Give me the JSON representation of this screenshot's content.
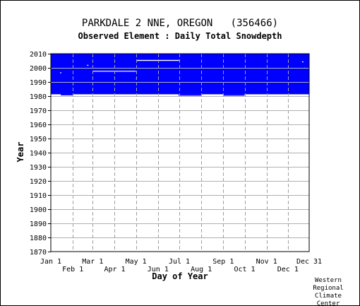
{
  "chart_data": {
    "type": "heatmap",
    "title": "PARKDALE 2 NNE, OREGON   (356466)",
    "subtitle": "Observed Element : Daily Total Snowdepth",
    "xlabel": "Day of Year",
    "ylabel": "Year",
    "x_ticks_upper": [
      "Jan 1",
      "Mar 1",
      "May 1",
      "Jul 1",
      "Sep 1",
      "Nov 1",
      "Dec 31"
    ],
    "x_ticks_lower": [
      "Feb 1",
      "Apr 1",
      "Jun 1",
      "Aug 1",
      "Oct 1",
      "Dec 1"
    ],
    "x_tick_days_upper": [
      1,
      60,
      121,
      182,
      244,
      305,
      365
    ],
    "x_tick_days_lower": [
      32,
      91,
      152,
      213,
      274,
      335
    ],
    "y_ticks": [
      "2010",
      "2000",
      "1990",
      "1980",
      "1970",
      "1960",
      "1950",
      "1940",
      "1930",
      "1920",
      "1910",
      "1900",
      "1890",
      "1880",
      "1870"
    ],
    "xlim": [
      1,
      365
    ],
    "ylim": [
      1870,
      2010
    ],
    "grid": true,
    "data_color": "#0000ff",
    "coverage_block": {
      "day_start": 1,
      "day_end": 365,
      "year_start": 1980.5,
      "year_end": 2010
    },
    "gaps": [
      {
        "day_start": 1,
        "day_end": 365,
        "year_start": 1980,
        "year_end": 1981.3
      },
      {
        "day_start": 60,
        "day_end": 121,
        "year_start": 1997.3,
        "year_end": 1997.9
      },
      {
        "day_start": 122,
        "day_end": 182,
        "year_start": 2004.9,
        "year_end": 2005.6
      },
      {
        "day_start": 121,
        "day_end": 122,
        "year_start": 1992,
        "year_end": 1992.6
      },
      {
        "day_start": 14,
        "day_end": 16,
        "year_start": 1996.2,
        "year_end": 1996.8
      },
      {
        "day_start": 52,
        "day_end": 54,
        "year_start": 2001.5,
        "year_end": 2002.1
      },
      {
        "day_start": 355,
        "day_end": 357,
        "year_start": 2003.9,
        "year_end": 2004.5
      },
      {
        "day_start": 358,
        "day_end": 359,
        "year_start": 1999.5,
        "year_end": 2000.1
      }
    ],
    "fills": [
      {
        "day_start": 15,
        "day_end": 32,
        "year_start": 1980.5,
        "year_end": 1981.3
      },
      {
        "day_start": 181,
        "day_end": 213,
        "year_start": 1980.3,
        "year_end": 1981.3
      },
      {
        "day_start": 244,
        "day_end": 274,
        "year_start": 1980.3,
        "year_end": 1981.3
      }
    ]
  },
  "credit": [
    "Western",
    "Regional",
    "Climate",
    "Center"
  ]
}
